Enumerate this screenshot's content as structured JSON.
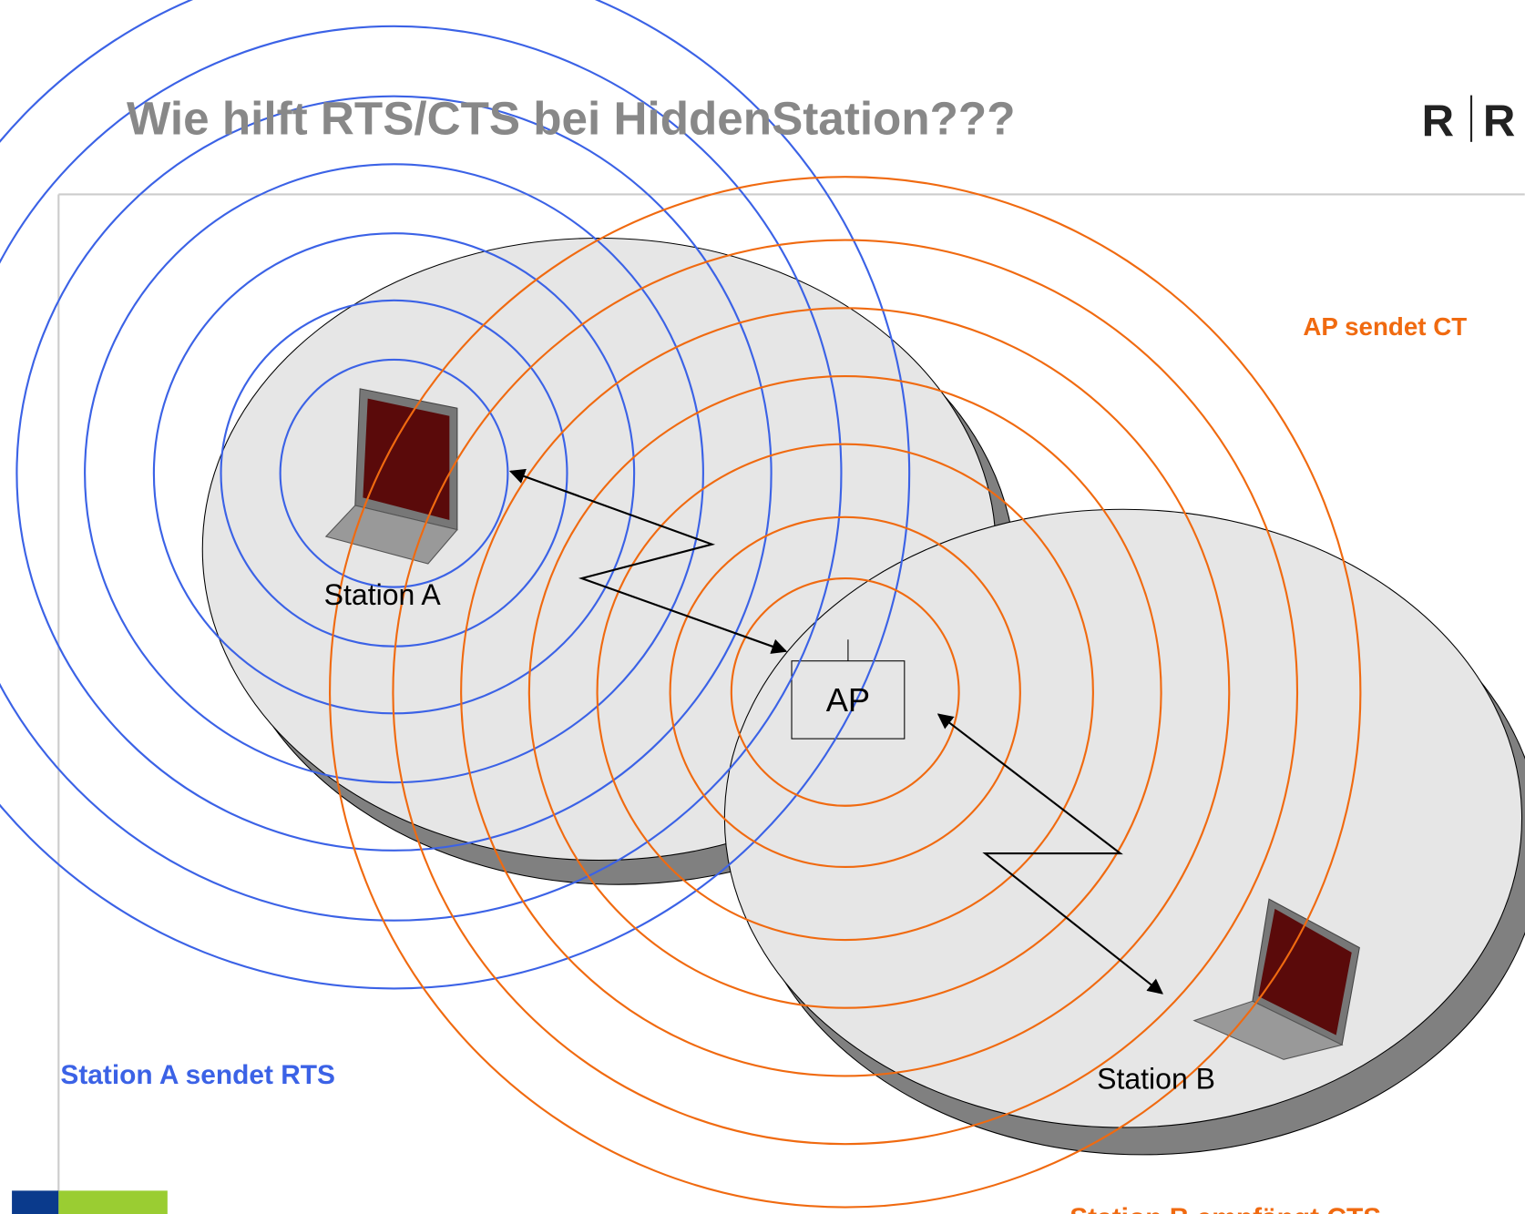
{
  "header": {
    "title": "Wie hilft RTS/CTS bei HiddenStation???",
    "logo": [
      "R",
      "R"
    ]
  },
  "nodes": [
    {
      "label": "Station A"
    },
    {
      "label": "AP"
    },
    {
      "label": "Station B"
    }
  ],
  "annotations": {
    "station_a": "Station A sendet RTS",
    "ap": "AP sendet CT",
    "station_b": "Station B empfängt CTS"
  }
}
